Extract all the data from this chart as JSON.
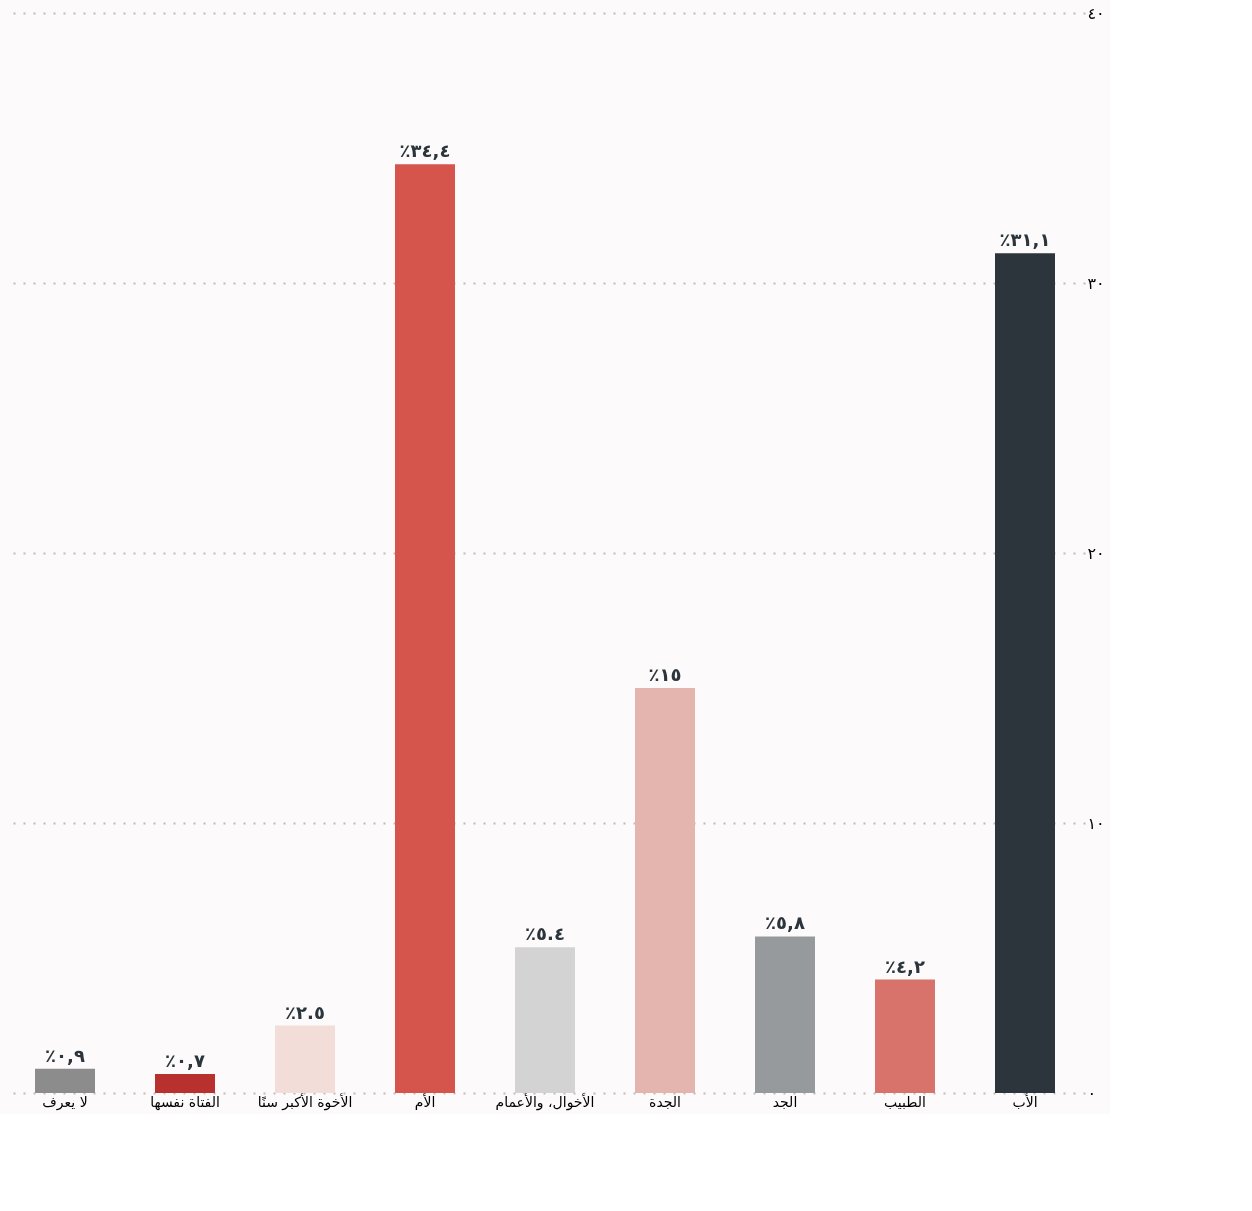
{
  "chart_data": {
    "type": "bar",
    "categories": [
      "لا يعرف",
      "الفتاة نفسها",
      "الأخوة الأكبر سنًا",
      "الأم",
      "الأخوال، والأعمام",
      "الجدة",
      "الجد",
      "الطبيب",
      "الأب"
    ],
    "values": [
      0.9,
      0.7,
      2.5,
      34.4,
      5.4,
      15,
      5.8,
      4.2,
      31.1
    ],
    "value_labels": [
      "٪٠,٩",
      "٪٠,٧",
      "٪٢.٥",
      "٪٣٤,٤",
      "٪٥.٤",
      "٪١٥",
      "٪٥,٨",
      "٪٤,٢",
      "٪٣١,١"
    ],
    "colors": [
      "#8c8c8c",
      "#b8312f",
      "#f2ddd8",
      "#d5544b",
      "#d3d3d3",
      "#e3b5ae",
      "#979a9c",
      "#d7736a",
      "#2c353b"
    ],
    "ylim": [
      0,
      40
    ],
    "yticks": [
      {
        "value": 0,
        "label": "٠"
      },
      {
        "value": 10,
        "label": "١٠"
      },
      {
        "value": 20,
        "label": "٢٠"
      },
      {
        "value": 30,
        "label": "٣٠"
      },
      {
        "value": 40,
        "label": "٤٠"
      }
    ],
    "grid": "y",
    "legend": false
  }
}
